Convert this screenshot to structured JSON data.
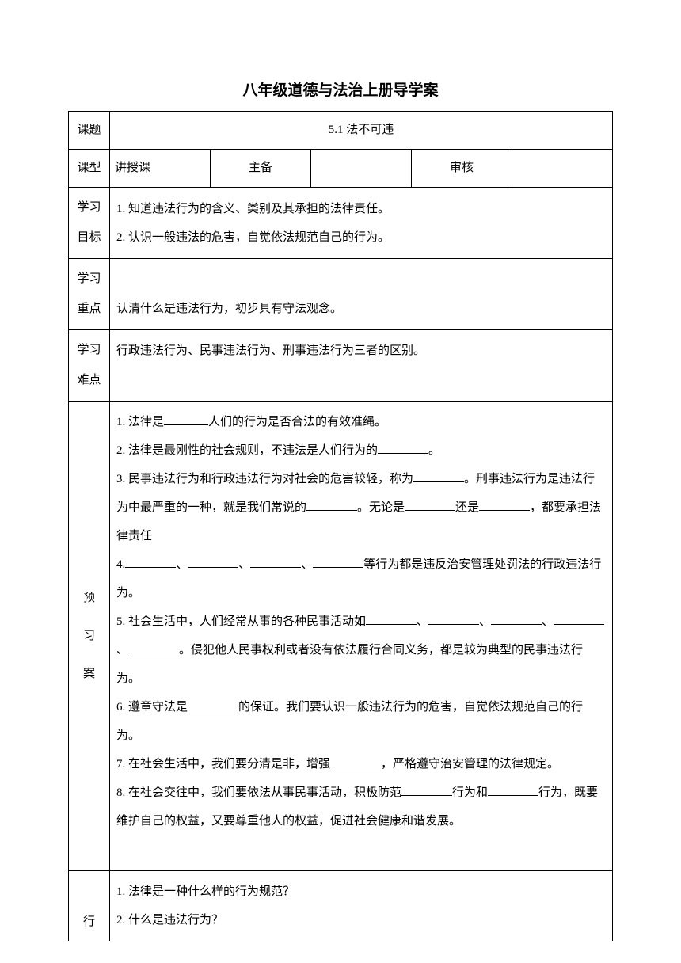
{
  "title": "八年级道德与法治上册导学案",
  "row1": {
    "label": "课题",
    "content": "5.1 法不可违"
  },
  "row2": {
    "label": "课型",
    "c1": "讲授课",
    "c2": "主备",
    "c3": "",
    "c4": "审核",
    "c5": ""
  },
  "objectives": {
    "label1": "学习",
    "label2": "目标",
    "line1": "1. 知道违法行为的含义、类别及其承担的法律责任。",
    "line2": "2. 认识一般违法的危害，自觉依法规范自己的行为。"
  },
  "keypoint": {
    "label1": "学习",
    "label2": "重点",
    "content": "认清什么是违法行为，初步具有守法观念。"
  },
  "difficulty": {
    "label1": "学习",
    "label2": "难点",
    "content": "行政违法行为、民事违法行为、刑事违法行为三者的区别。"
  },
  "preview": {
    "label1": "预",
    "label2": "习",
    "label3": "案",
    "item1_pre": "1. 法律是",
    "item1_post": "人们的行为是否合法的有效准绳。",
    "item2_pre": "2. 法律是最刚性的社会规则，不违法是人们行为的",
    "item2_post": "。",
    "item3_pre": "3. 民事违法行为和行政违法行为对社会的危害较轻，称为",
    "item3_mid1": "。刑事违法行为是违法行为中最严重的一种，就是我们常说的",
    "item3_mid2": "。无论是",
    "item3_mid3": "还是",
    "item3_post": "，都要承担法律责任",
    "item4_pre": "4.",
    "item4_sep": "、",
    "item4_post": "等行为都是违反治安管理处罚法的行政违法行为。",
    "item5_pre": "5. 社会生活中，人们经常从事的各种民事活动如",
    "item5_sep": "、",
    "item5_post": "。侵犯他人民事权利或者没有依法履行合同义务，都是较为典型的民事违法行为。",
    "item6_pre": "6. 遵章守法是",
    "item6_post": "的保证。我们要认识一般违法行为的危害，自觉依法规范自己的行为。",
    "item7_pre": "7. 在社会生活中，我们要分清是非，增强",
    "item7_post": "，严格遵守治安管理的法律规定。",
    "item8_pre": "8. 在社会交往中，我们要依法从事民事活动，积极防范",
    "item8_mid": "行为和",
    "item8_post": "行为，既要维护自己的权益，又要尊重他人的权益，促进社会健康和谐发展。"
  },
  "action": {
    "label": "行",
    "line1": "1. 法律是一种什么样的行为规范？",
    "line2": "2. 什么是违法行为？"
  }
}
